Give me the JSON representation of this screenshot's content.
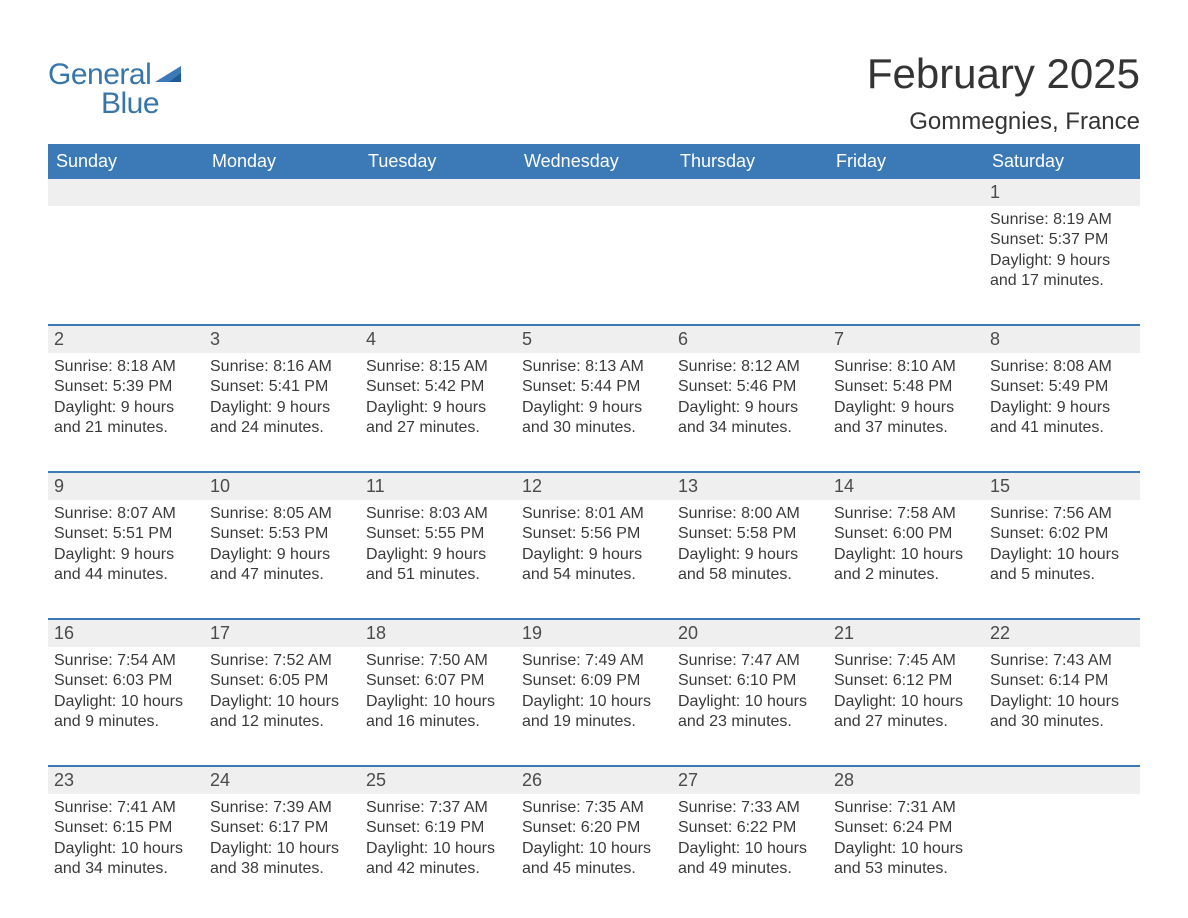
{
  "logo": {
    "text1": "General",
    "text2": "Blue",
    "triangle_color": "#3b79b7",
    "text_color": "#3876aa"
  },
  "title": "February 2025",
  "location": "Gommegnies, France",
  "colors": {
    "header_bg": "#3b79b7",
    "header_text": "#ffffff",
    "daynum_bg": "#efefef",
    "text": "#3a3a3a",
    "week_border": "#3b79b7",
    "background": "#ffffff"
  },
  "typography": {
    "title_fontsize": 42,
    "location_fontsize": 24,
    "dow_fontsize": 18,
    "daynum_fontsize": 18,
    "body_fontsize": 16,
    "logo_fontsize": 30
  },
  "days_of_week": [
    "Sunday",
    "Monday",
    "Tuesday",
    "Wednesday",
    "Thursday",
    "Friday",
    "Saturday"
  ],
  "weeks": [
    [
      null,
      null,
      null,
      null,
      null,
      null,
      {
        "n": "1",
        "sunrise": "8:19 AM",
        "sunset": "5:37 PM",
        "daylight": "9 hours and 17 minutes."
      }
    ],
    [
      {
        "n": "2",
        "sunrise": "8:18 AM",
        "sunset": "5:39 PM",
        "daylight": "9 hours and 21 minutes."
      },
      {
        "n": "3",
        "sunrise": "8:16 AM",
        "sunset": "5:41 PM",
        "daylight": "9 hours and 24 minutes."
      },
      {
        "n": "4",
        "sunrise": "8:15 AM",
        "sunset": "5:42 PM",
        "daylight": "9 hours and 27 minutes."
      },
      {
        "n": "5",
        "sunrise": "8:13 AM",
        "sunset": "5:44 PM",
        "daylight": "9 hours and 30 minutes."
      },
      {
        "n": "6",
        "sunrise": "8:12 AM",
        "sunset": "5:46 PM",
        "daylight": "9 hours and 34 minutes."
      },
      {
        "n": "7",
        "sunrise": "8:10 AM",
        "sunset": "5:48 PM",
        "daylight": "9 hours and 37 minutes."
      },
      {
        "n": "8",
        "sunrise": "8:08 AM",
        "sunset": "5:49 PM",
        "daylight": "9 hours and 41 minutes."
      }
    ],
    [
      {
        "n": "9",
        "sunrise": "8:07 AM",
        "sunset": "5:51 PM",
        "daylight": "9 hours and 44 minutes."
      },
      {
        "n": "10",
        "sunrise": "8:05 AM",
        "sunset": "5:53 PM",
        "daylight": "9 hours and 47 minutes."
      },
      {
        "n": "11",
        "sunrise": "8:03 AM",
        "sunset": "5:55 PM",
        "daylight": "9 hours and 51 minutes."
      },
      {
        "n": "12",
        "sunrise": "8:01 AM",
        "sunset": "5:56 PM",
        "daylight": "9 hours and 54 minutes."
      },
      {
        "n": "13",
        "sunrise": "8:00 AM",
        "sunset": "5:58 PM",
        "daylight": "9 hours and 58 minutes."
      },
      {
        "n": "14",
        "sunrise": "7:58 AM",
        "sunset": "6:00 PM",
        "daylight": "10 hours and 2 minutes."
      },
      {
        "n": "15",
        "sunrise": "7:56 AM",
        "sunset": "6:02 PM",
        "daylight": "10 hours and 5 minutes."
      }
    ],
    [
      {
        "n": "16",
        "sunrise": "7:54 AM",
        "sunset": "6:03 PM",
        "daylight": "10 hours and 9 minutes."
      },
      {
        "n": "17",
        "sunrise": "7:52 AM",
        "sunset": "6:05 PM",
        "daylight": "10 hours and 12 minutes."
      },
      {
        "n": "18",
        "sunrise": "7:50 AM",
        "sunset": "6:07 PM",
        "daylight": "10 hours and 16 minutes."
      },
      {
        "n": "19",
        "sunrise": "7:49 AM",
        "sunset": "6:09 PM",
        "daylight": "10 hours and 19 minutes."
      },
      {
        "n": "20",
        "sunrise": "7:47 AM",
        "sunset": "6:10 PM",
        "daylight": "10 hours and 23 minutes."
      },
      {
        "n": "21",
        "sunrise": "7:45 AM",
        "sunset": "6:12 PM",
        "daylight": "10 hours and 27 minutes."
      },
      {
        "n": "22",
        "sunrise": "7:43 AM",
        "sunset": "6:14 PM",
        "daylight": "10 hours and 30 minutes."
      }
    ],
    [
      {
        "n": "23",
        "sunrise": "7:41 AM",
        "sunset": "6:15 PM",
        "daylight": "10 hours and 34 minutes."
      },
      {
        "n": "24",
        "sunrise": "7:39 AM",
        "sunset": "6:17 PM",
        "daylight": "10 hours and 38 minutes."
      },
      {
        "n": "25",
        "sunrise": "7:37 AM",
        "sunset": "6:19 PM",
        "daylight": "10 hours and 42 minutes."
      },
      {
        "n": "26",
        "sunrise": "7:35 AM",
        "sunset": "6:20 PM",
        "daylight": "10 hours and 45 minutes."
      },
      {
        "n": "27",
        "sunrise": "7:33 AM",
        "sunset": "6:22 PM",
        "daylight": "10 hours and 49 minutes."
      },
      {
        "n": "28",
        "sunrise": "7:31 AM",
        "sunset": "6:24 PM",
        "daylight": "10 hours and 53 minutes."
      },
      null
    ]
  ],
  "labels": {
    "sunrise": "Sunrise: ",
    "sunset": "Sunset: ",
    "daylight": "Daylight: "
  }
}
